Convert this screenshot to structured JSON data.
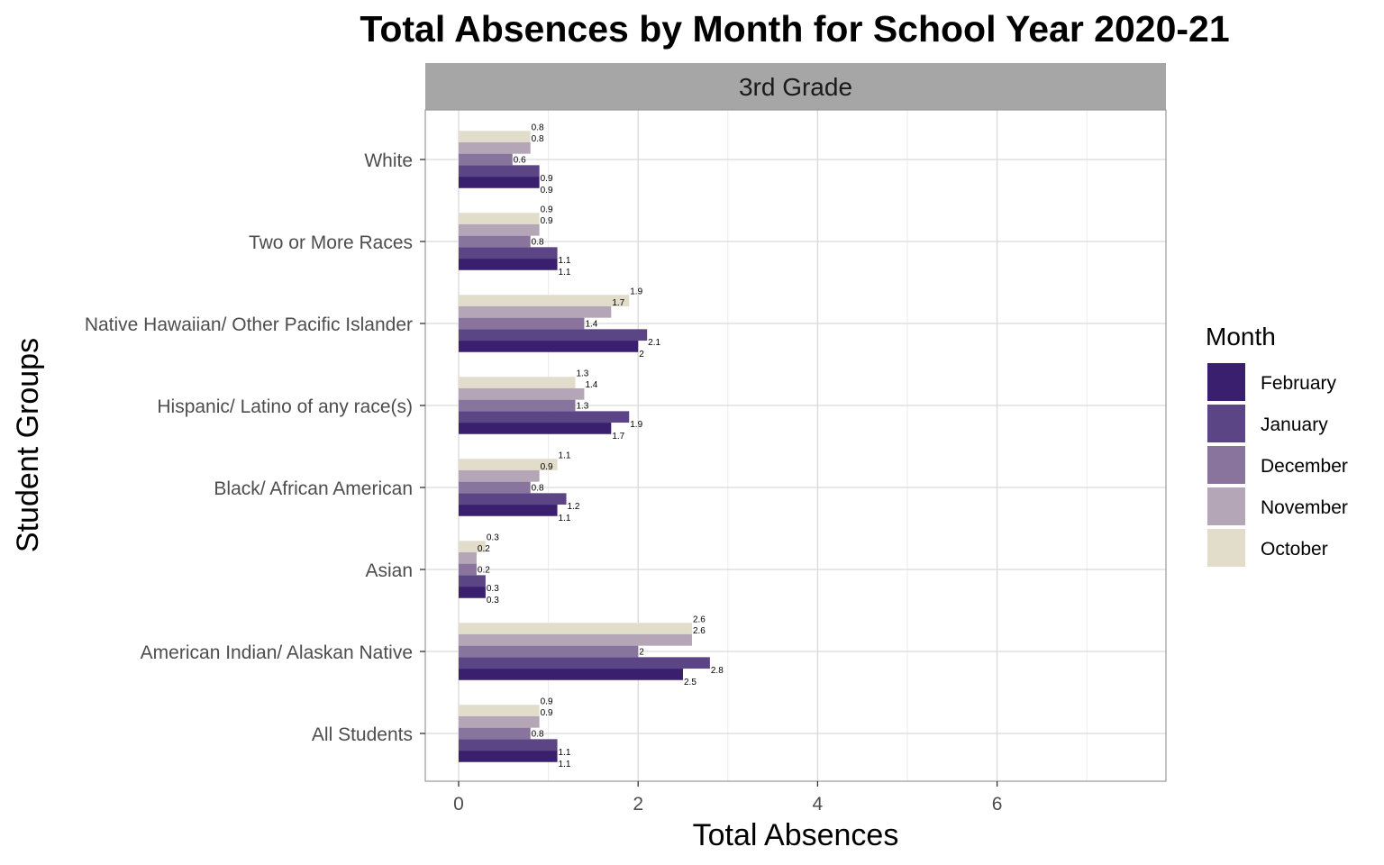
{
  "chart_data": {
    "type": "bar",
    "orientation": "horizontal",
    "title": "Total Absences by Month for School Year 2020-21",
    "facet": "3rd Grade",
    "xlabel": "Total Absences",
    "ylabel": "Student Groups",
    "xlim": [
      0,
      7.5
    ],
    "x_ticks": [
      "0",
      "2",
      "4",
      "6"
    ],
    "grid": true,
    "legend_title": "Month",
    "legend_placement": "right",
    "categories": [
      "White",
      "Two or More Races",
      "Native Hawaiian/ Other Pacific Islander",
      "Hispanic/ Latino of any race(s)",
      "Black/ African American",
      "Asian",
      "American Indian/ Alaskan Native",
      "All Students"
    ],
    "series": [
      {
        "name": "October",
        "color": "#e2dccb",
        "values": [
          0.8,
          0.9,
          1.9,
          1.3,
          1.1,
          0.3,
          2.6,
          0.9
        ]
      },
      {
        "name": "November",
        "color": "#b4a6b6",
        "values": [
          0.8,
          0.9,
          1.7,
          1.4,
          0.9,
          0.2,
          2.6,
          0.9
        ]
      },
      {
        "name": "December",
        "color": "#88749d",
        "values": [
          0.6,
          0.8,
          1.4,
          1.3,
          0.8,
          0.2,
          2,
          0.8
        ]
      },
      {
        "name": "January",
        "color": "#5c4585",
        "values": [
          0.9,
          1.1,
          2.1,
          1.9,
          1.2,
          0.3,
          2.8,
          1.1
        ]
      },
      {
        "name": "February",
        "color": "#3a1f6e",
        "values": [
          0.9,
          1.1,
          2,
          1.7,
          1.1,
          0.3,
          2.5,
          1.1
        ]
      }
    ],
    "legend_order": [
      "February",
      "January",
      "December",
      "November",
      "October"
    ]
  }
}
